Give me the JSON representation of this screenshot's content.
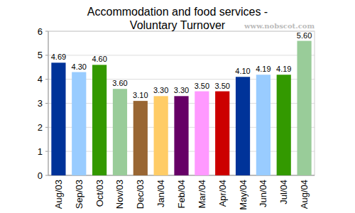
{
  "chart_data": {
    "type": "bar",
    "title": "Accommodation and food services - Voluntary Turnover",
    "annotations": [
      "www.nobscot.com"
    ],
    "categories": [
      "Aug/03",
      "Sep/03",
      "Oct/03",
      "Nov/03",
      "Dec/03",
      "Jan/04",
      "Feb/04",
      "Mar/04",
      "Apr/04",
      "May/04",
      "Jun/04",
      "Jul/04",
      "Aug/04"
    ],
    "values": [
      4.69,
      4.3,
      4.6,
      3.6,
      3.1,
      3.3,
      3.3,
      3.5,
      3.5,
      4.1,
      4.19,
      4.19,
      5.6
    ],
    "value_labels": [
      "4.69",
      "4.30",
      "4.60",
      "3.60",
      "3.10",
      "3.30",
      "3.30",
      "3.50",
      "3.50",
      "4.10",
      "4.19",
      "4.19",
      "5.60"
    ],
    "colors": [
      "#003399",
      "#99ccff",
      "#339900",
      "#99cc99",
      "#996633",
      "#ffcc66",
      "#660066",
      "#ff99ff",
      "#cc0000",
      "#003399",
      "#99ccff",
      "#339900",
      "#99cc99"
    ],
    "ylim": [
      0,
      6
    ],
    "yticks": [
      0,
      1,
      2,
      3,
      4,
      5,
      6
    ],
    "grid": true,
    "data_labels": true
  }
}
